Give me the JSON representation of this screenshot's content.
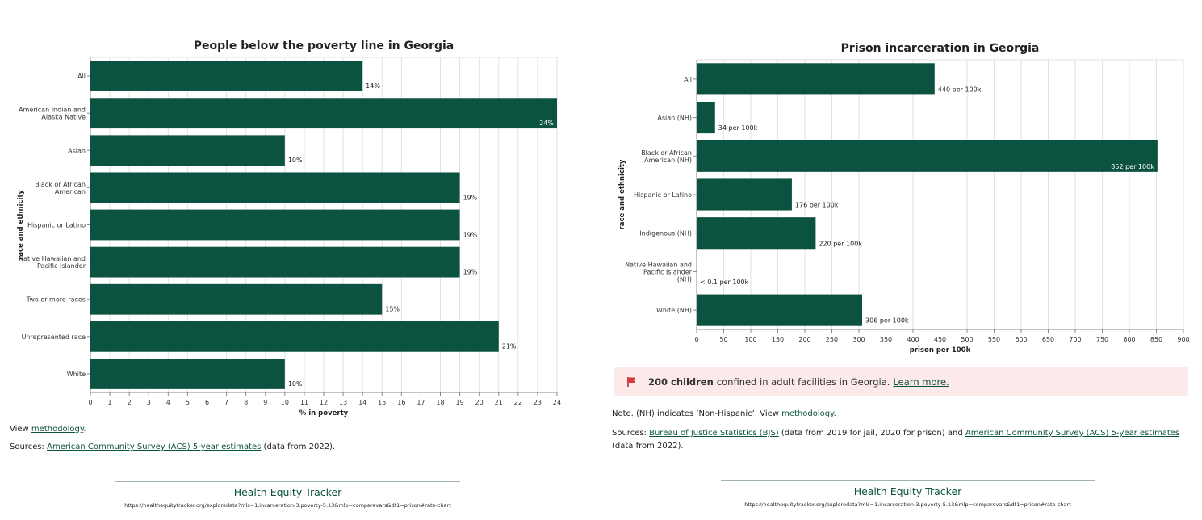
{
  "colors": {
    "bar": "#0b5240",
    "grid": "#e2e2e2",
    "axis": "#888888",
    "accent": "#0b5240",
    "alert_bg": "#fce9ea",
    "flag": "#d63b3b"
  },
  "chart_data": [
    {
      "type": "bar",
      "orientation": "horizontal",
      "title": "People below the poverty line in Georgia",
      "xlabel": "% in poverty",
      "ylabel": "race and ethnicity",
      "xlim": [
        0,
        24
      ],
      "xticks": [
        0,
        1,
        2,
        3,
        4,
        5,
        6,
        7,
        8,
        9,
        10,
        11,
        12,
        13,
        14,
        15,
        16,
        17,
        18,
        19,
        20,
        21,
        22,
        23,
        24
      ],
      "grid": true,
      "categories": [
        [
          "All"
        ],
        [
          "American Indian and",
          "Alaska Native"
        ],
        [
          "Asian"
        ],
        [
          "Black or African",
          "American"
        ],
        [
          "Hispanic or Latino"
        ],
        [
          "Native Hawaiian and",
          "Pacific Islander"
        ],
        [
          "Two or more races"
        ],
        [
          "Unrepresented race"
        ],
        [
          "White"
        ]
      ],
      "values": [
        14,
        24,
        10,
        19,
        19,
        19,
        15,
        21,
        10
      ],
      "labels": [
        "14%",
        "24%",
        "10%",
        "19%",
        "19%",
        "19%",
        "15%",
        "21%",
        "10%"
      ]
    },
    {
      "type": "bar",
      "orientation": "horizontal",
      "title": "Prison incarceration in Georgia",
      "xlabel": "prison per 100k",
      "ylabel": "race and ethnicity",
      "xlim": [
        0,
        900
      ],
      "xticks": [
        0,
        50,
        100,
        150,
        200,
        250,
        300,
        350,
        400,
        450,
        500,
        550,
        600,
        650,
        700,
        750,
        800,
        850,
        900
      ],
      "grid": true,
      "categories": [
        [
          "All"
        ],
        [
          "Asian (NH)"
        ],
        [
          "Black or African",
          "American (NH)"
        ],
        [
          "Hispanic or Latino"
        ],
        [
          "Indigenous (NH)"
        ],
        [
          "Native Hawaiian and",
          "Pacific Islander",
          "(NH)"
        ],
        [
          "White (NH)"
        ]
      ],
      "values": [
        440,
        34,
        852,
        176,
        220,
        0.05,
        306
      ],
      "labels": [
        "440 per 100k",
        "34 per 100k",
        "852 per 100k",
        "176 per 100k",
        "220 per 100k",
        "< 0.1 per 100k",
        "306 per 100k"
      ]
    }
  ],
  "left_notes": {
    "view_prefix": "View ",
    "view_link": "methodology",
    "view_suffix": ".",
    "sources_prefix": "Sources: ",
    "sources_link": "American Community Survey (ACS) 5-year estimates",
    "sources_suffix": " (data from 2022)."
  },
  "right_notes": {
    "note_prefix": "Note. (NH) indicates ‘Non-Hispanic’. View ",
    "note_link": "methodology",
    "note_suffix": ".",
    "sources_prefix": "Sources: ",
    "sources_link1": "Bureau of Justice Statistics (BJS)",
    "sources_middle": " (data from 2019 for jail, 2020 for prison) and ",
    "sources_link2": "American Community Survey (ACS) 5-year estimates",
    "sources_suffix": " (data from 2022)."
  },
  "alert": {
    "bold": "200 children",
    "text": "confined in adult facilities in Georgia.",
    "link": "Learn more."
  },
  "footer": {
    "title": "Health Equity Tracker",
    "url": "https://healthequitytracker.org/exploredata?mls=1.incarceration-3.poverty-5.13&mlp=comparevars&dt1=prison#rate-chart"
  }
}
